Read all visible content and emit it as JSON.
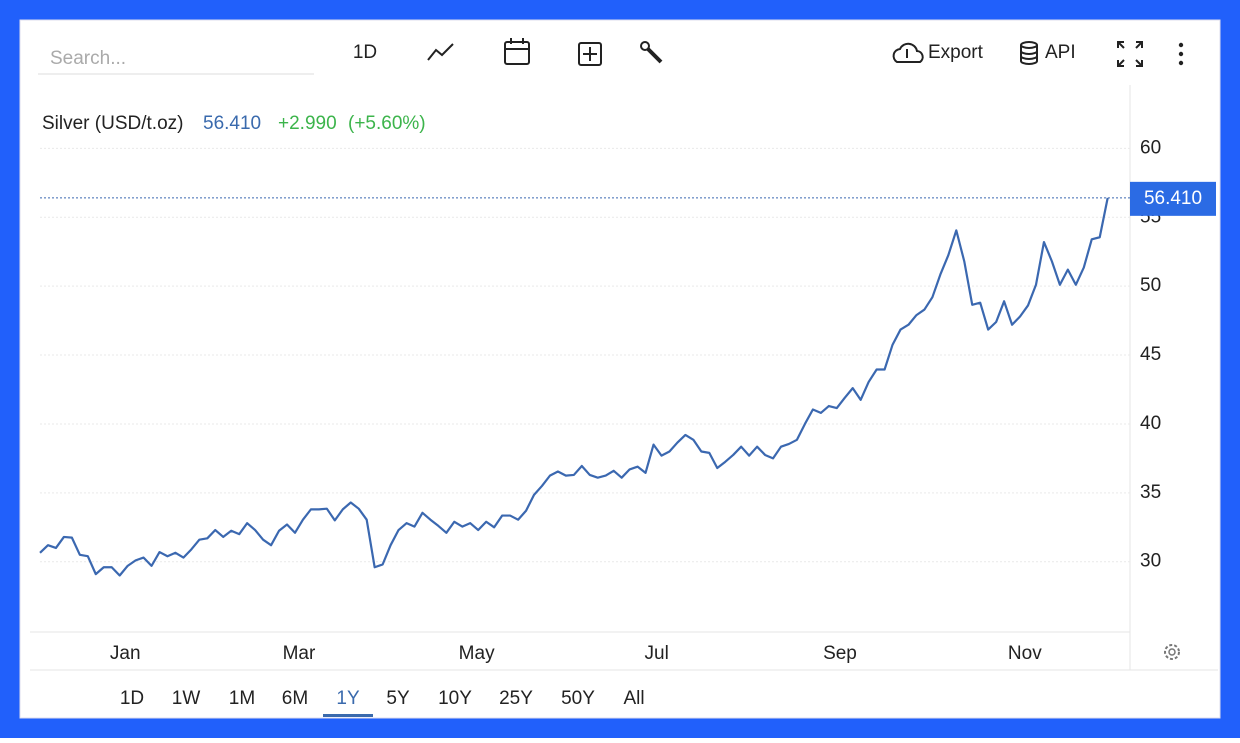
{
  "toolbar": {
    "search_placeholder": "Search...",
    "interval": "1D",
    "export": "Export",
    "api": "API"
  },
  "legend": {
    "name": "Silver (USD/t.oz)",
    "price": "56.410",
    "change": "+2.990",
    "change_pct": "(+5.60%)"
  },
  "chart_data": {
    "type": "line",
    "series": [
      {
        "name": "Silver (USD/t.oz)",
        "color": "#3b68b0",
        "values": [
          30.65,
          31.2,
          31.0,
          31.8,
          31.75,
          30.5,
          30.4,
          29.1,
          29.6,
          29.6,
          29.0,
          29.7,
          30.1,
          30.3,
          29.7,
          30.7,
          30.4,
          30.65,
          30.3,
          30.9,
          31.6,
          31.7,
          32.3,
          31.8,
          32.25,
          32.0,
          32.8,
          32.3,
          31.6,
          31.2,
          32.25,
          32.7,
          32.1,
          33.05,
          33.8,
          33.8,
          33.85,
          33.0,
          33.8,
          34.3,
          33.85,
          33.05,
          29.6,
          29.8,
          31.2,
          32.3,
          32.8,
          32.55,
          33.55,
          33.05,
          32.6,
          32.1,
          32.9,
          32.55,
          32.8,
          32.3,
          32.9,
          32.5,
          33.35,
          33.35,
          33.05,
          33.7,
          34.85,
          35.5,
          36.25,
          36.55,
          36.25,
          36.3,
          36.95,
          36.3,
          36.1,
          36.25,
          36.6,
          36.1,
          36.7,
          36.9,
          36.45,
          38.5,
          37.7,
          38.0,
          38.65,
          39.2,
          38.85,
          38.0,
          37.9,
          36.8,
          37.25,
          37.75,
          38.35,
          37.7,
          38.35,
          37.75,
          37.5,
          38.35,
          38.55,
          38.85,
          40.0,
          41.05,
          40.8,
          41.3,
          41.15,
          41.9,
          42.6,
          41.75,
          43.05,
          43.95,
          43.95,
          45.75,
          46.85,
          47.2,
          47.9,
          48.3,
          49.2,
          50.85,
          52.25,
          54.05,
          51.8,
          48.65,
          48.8,
          46.85,
          47.4,
          48.9,
          47.2,
          47.8,
          48.6,
          50.1,
          53.2,
          51.8,
          50.1,
          51.2,
          50.1,
          51.35,
          53.4,
          53.55,
          56.41
        ]
      }
    ],
    "xlim": [
      0,
      136.8
    ],
    "xticks": [
      {
        "value": 10.7,
        "label": "Jan"
      },
      {
        "value": 32.5,
        "label": "Mar"
      },
      {
        "value": 54.8,
        "label": "May"
      },
      {
        "value": 77.4,
        "label": "Jul"
      },
      {
        "value": 100.4,
        "label": "Sep"
      },
      {
        "value": 123.6,
        "label": "Nov"
      }
    ],
    "ylim": [
      24.9,
      64.6
    ],
    "yticks": [
      30,
      35,
      40,
      45,
      50,
      55,
      60
    ],
    "grid": true
  },
  "ranges": [
    {
      "label": "1D"
    },
    {
      "label": "1W"
    },
    {
      "label": "1M"
    },
    {
      "label": "6M"
    },
    {
      "label": "1Y",
      "selected": true
    },
    {
      "label": "5Y"
    },
    {
      "label": "10Y"
    },
    {
      "label": "25Y"
    },
    {
      "label": "50Y"
    },
    {
      "label": "All"
    }
  ]
}
